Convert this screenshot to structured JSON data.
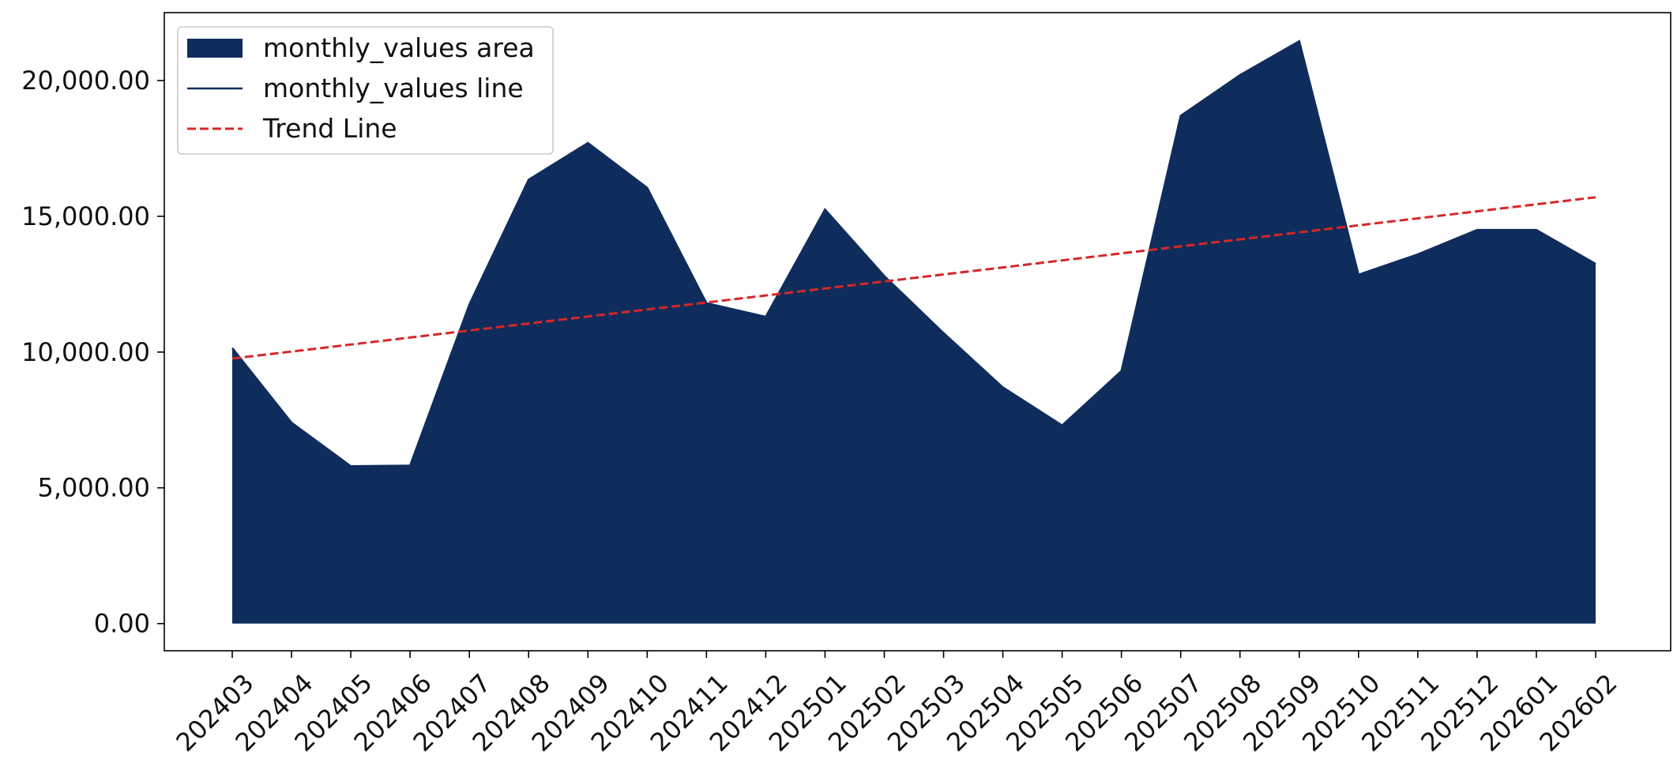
{
  "chart_data": {
    "type": "area",
    "title": "",
    "xlabel": "",
    "ylabel": "",
    "categories": [
      "202403",
      "202404",
      "202405",
      "202406",
      "202407",
      "202408",
      "202409",
      "202410",
      "202411",
      "202412",
      "202501",
      "202502",
      "202503",
      "202504",
      "202505",
      "202506",
      "202507",
      "202508",
      "202509",
      "202510",
      "202511",
      "202512",
      "202601",
      "202602"
    ],
    "series": [
      {
        "name": "monthly_values area",
        "kind": "area",
        "color": "#0f2d5c",
        "values": [
          10150,
          7400,
          5800,
          5820,
          11750,
          16350,
          17700,
          16050,
          11800,
          11300,
          15250,
          12800,
          10700,
          8700,
          7300,
          9300,
          18700,
          20200,
          21450,
          12850,
          13600,
          14500,
          14500,
          13250
        ]
      },
      {
        "name": "monthly_values line",
        "kind": "line",
        "color": "#0f2d5c",
        "values": [
          10150,
          7400,
          5800,
          5820,
          11750,
          16350,
          17700,
          16050,
          11800,
          11300,
          15250,
          12800,
          10700,
          8700,
          7300,
          9300,
          18700,
          20200,
          21450,
          12850,
          13600,
          14500,
          14500,
          13250
        ]
      },
      {
        "name": "Trend Line",
        "kind": "trend",
        "color": "#d62728",
        "values": [
          9760,
          10018,
          10277,
          10535,
          10793,
          11051,
          11310,
          11568,
          11826,
          12084,
          12343,
          12601,
          12859,
          13117,
          13376,
          13634,
          13892,
          14150,
          14409,
          14667,
          14925,
          15183,
          15442,
          15700
        ]
      }
    ],
    "yticks": [
      0,
      5000,
      10000,
      15000,
      20000
    ],
    "ytick_labels": [
      "0.00",
      "5,000.00",
      "10,000.00",
      "15,000.00",
      "20,000.00"
    ],
    "ylim": [
      -1000,
      22500
    ],
    "grid": false,
    "legend_position": "top-left"
  }
}
